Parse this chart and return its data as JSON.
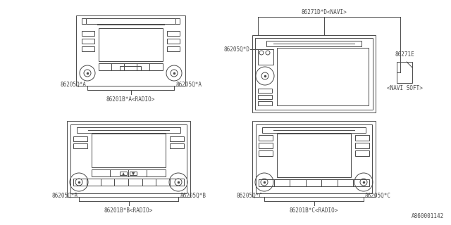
{
  "bg_color": "#ffffff",
  "line_color": "#4a4a4a",
  "fig_width": 6.4,
  "fig_height": 3.2,
  "dpi": 100,
  "labels": {
    "top_left_part1": "86205Q*A",
    "top_left_part2": "86205Q*A",
    "top_left_main": "86201B*A<RADIO>",
    "top_right_navi": "86271D*D<NAVI>",
    "top_right_part1": "86205Q*D",
    "top_right_part2": "86271E",
    "top_right_navi_soft": "<NAVI SOFT>",
    "bot_left_part1": "86205Q*B",
    "bot_left_part2": "86205Q*B",
    "bot_left_main": "86201B*B<RADIO>",
    "bot_right_part1": "86205Q*C",
    "bot_right_part2": "86205Q*C",
    "bot_right_main": "86201B*C<RADIO>",
    "ref": "A860001142"
  }
}
